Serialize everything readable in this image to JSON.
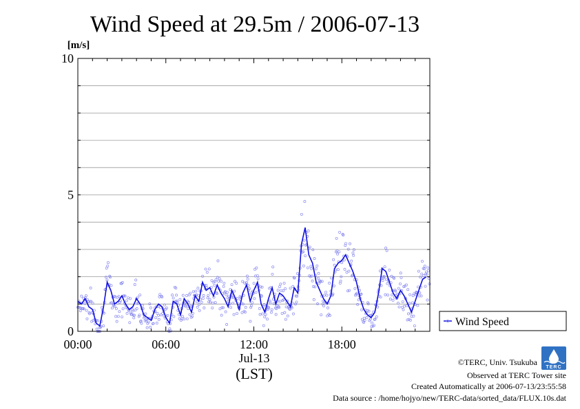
{
  "chart_data": {
    "type": "scatter",
    "title": "Wind Speed at 29.5m / 2006-07-13",
    "ylabel": "[m/s]",
    "xlabel": "(LST)",
    "date_label": "Jul-13",
    "x_ticks": [
      "00:00",
      "06:00",
      "12:00",
      "18:00"
    ],
    "x_tick_hours": [
      0,
      6,
      12,
      18
    ],
    "xlim_hours": [
      0,
      24
    ],
    "y_ticks": [
      "0",
      "5",
      "10"
    ],
    "y_tick_values": [
      0,
      5,
      10
    ],
    "ylim": [
      0,
      10
    ],
    "grid": true,
    "legend": {
      "label": "Wind Speed",
      "position": "right-bottom"
    },
    "series_color": "#1010e0",
    "point_color": "#8888f0",
    "series": [
      {
        "name": "Wind Speed",
        "x_hours": [
          0.0,
          0.25,
          0.5,
          0.75,
          1.0,
          1.25,
          1.5,
          1.75,
          2.0,
          2.25,
          2.5,
          2.75,
          3.0,
          3.25,
          3.5,
          3.75,
          4.0,
          4.25,
          4.5,
          4.75,
          5.0,
          5.25,
          5.5,
          5.75,
          6.0,
          6.25,
          6.5,
          6.75,
          7.0,
          7.25,
          7.5,
          7.75,
          8.0,
          8.25,
          8.5,
          8.75,
          9.0,
          9.25,
          9.5,
          9.75,
          10.0,
          10.25,
          10.5,
          10.75,
          11.0,
          11.25,
          11.5,
          11.75,
          12.0,
          12.25,
          12.5,
          12.75,
          13.0,
          13.25,
          13.5,
          13.75,
          14.0,
          14.25,
          14.5,
          14.75,
          15.0,
          15.25,
          15.5,
          15.75,
          16.0,
          16.25,
          16.5,
          16.75,
          17.0,
          17.25,
          17.5,
          17.75,
          18.0,
          18.25,
          18.5,
          18.75,
          19.0,
          19.25,
          19.5,
          19.75,
          20.0,
          20.25,
          20.5,
          20.75,
          21.0,
          21.25,
          21.5,
          21.75,
          22.0,
          22.25,
          22.5,
          22.75,
          23.0,
          23.25,
          23.5,
          23.75
        ],
        "values": [
          1.1,
          1.0,
          1.2,
          0.9,
          0.8,
          0.3,
          0.2,
          0.9,
          1.8,
          1.5,
          1.0,
          1.1,
          1.3,
          1.0,
          0.8,
          0.9,
          1.2,
          1.0,
          0.6,
          0.5,
          0.4,
          0.8,
          1.0,
          0.9,
          0.5,
          0.3,
          1.1,
          1.0,
          0.6,
          1.2,
          1.0,
          0.7,
          1.3,
          1.1,
          1.8,
          1.5,
          1.6,
          1.3,
          1.7,
          1.4,
          1.2,
          0.9,
          1.5,
          1.2,
          0.8,
          1.4,
          1.7,
          1.1,
          1.5,
          1.8,
          1.0,
          0.7,
          1.2,
          1.6,
          1.0,
          1.4,
          1.3,
          1.1,
          0.9,
          1.6,
          1.4,
          3.2,
          3.8,
          2.8,
          2.5,
          1.8,
          1.5,
          1.2,
          1.0,
          1.3,
          2.3,
          2.5,
          2.6,
          2.8,
          2.5,
          2.2,
          1.8,
          1.2,
          0.8,
          0.6,
          0.5,
          0.7,
          1.4,
          2.3,
          2.2,
          1.8,
          1.4,
          1.2,
          1.5,
          1.3,
          1.0,
          0.7,
          1.1,
          1.5,
          1.9,
          2.0
        ]
      }
    ]
  },
  "footer": {
    "copyright": "©TERC, Univ. Tsukuba",
    "observed": "Observed at TERC Tower site",
    "created": "Created Automatically at 2006-07-13/23:55:58",
    "source": "Data source : /home/hojyo/new/TERC-data/sorted_data/FLUX.10s.dat"
  },
  "logo_text": "TERC"
}
